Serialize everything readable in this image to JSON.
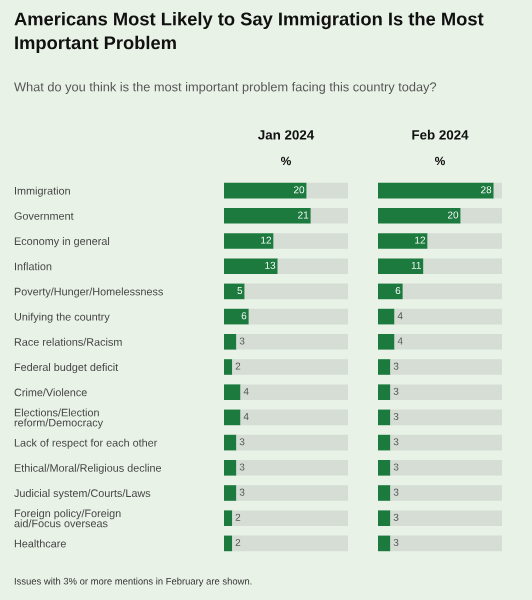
{
  "chart_data": [
    {
      "type": "other",
      "title": "Americans Most Likely to Say Immigration Is the Most Important Problem",
      "subtitle": "What do you think is the most important problem facing this country today?",
      "annotations": [
        "Issues with 3% or more mentions in February are shown."
      ]
    },
    {
      "type": "bar",
      "orientation": "horizontal",
      "stacked": true,
      "title": "Jan 2024",
      "subtitle": "%",
      "tick_labels": "y",
      "xlim": [
        0,
        30
      ],
      "categories": [
        "Immigration",
        "Government",
        "Economy in general",
        "Inflation",
        "Poverty/Hunger/Homelessness",
        "Unifying the country",
        "Race relations/Racism",
        "Federal budget deficit",
        "Crime/Violence",
        "Elections/Election reform/Democracy",
        "Lack of respect for each other",
        "Ethical/Moral/Religious decline",
        "Judicial system/Courts/Laws",
        "Foreign policy/Foreign aid/Focus overseas",
        "Healthcare"
      ],
      "series": [
        {
          "color": "#1c7a3e",
          "values": [
            20,
            21,
            12,
            13,
            5,
            6,
            3,
            2,
            4,
            4,
            3,
            3,
            3,
            2,
            2
          ],
          "value_labels": [
            "20",
            "21",
            "12",
            "13",
            "5",
            "6",
            "3",
            "2",
            "4",
            "4",
            "3",
            "3",
            "3",
            "2",
            "2"
          ]
        },
        {
          "color": "#d5ddd5",
          "values": [
            10,
            9,
            18,
            17,
            25,
            24,
            27,
            28,
            26,
            26,
            27,
            27,
            27,
            28,
            28
          ]
        }
      ]
    },
    {
      "type": "bar",
      "orientation": "horizontal",
      "stacked": true,
      "title": "Feb 2024",
      "subtitle": "%",
      "tick_labels": false,
      "xlim": [
        0,
        30
      ],
      "categories": [
        null,
        null,
        null,
        null,
        null,
        null,
        null,
        null,
        null,
        null,
        null,
        null,
        null,
        null,
        null
      ],
      "series": [
        {
          "color": "#1c7a3e",
          "values": [
            28,
            20,
            12,
            11,
            6,
            4,
            4,
            3,
            3,
            3,
            3,
            3,
            3,
            3,
            3
          ],
          "value_labels": [
            "28",
            "20",
            "12",
            "11",
            "6",
            "4",
            "4",
            "3",
            "3",
            "3",
            "3",
            "3",
            "3",
            "3",
            "3"
          ]
        },
        {
          "color": "#d5ddd5",
          "values": [
            2,
            10,
            18,
            19,
            24,
            26,
            26,
            27,
            27,
            27,
            27,
            27,
            27,
            27,
            27
          ]
        }
      ]
    }
  ]
}
